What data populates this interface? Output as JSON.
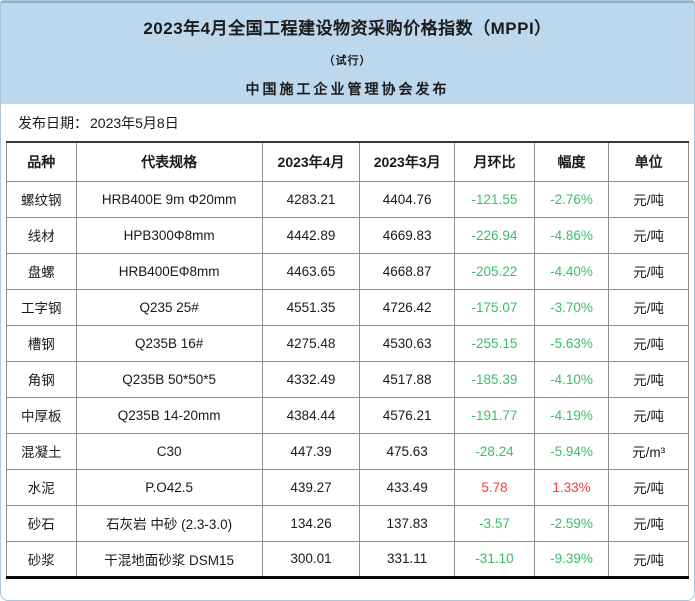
{
  "header": {
    "title": "2023年4月全国工程建设物资采购价格指数（MPPI）",
    "subtitle": "（试行）",
    "publisher": "中国施工企业管理协会发布"
  },
  "release": {
    "label": "发布日期：",
    "date": "2023年5月8日"
  },
  "table": {
    "columns": [
      "品种",
      "代表规格",
      "2023年4月",
      "2023年3月",
      "月环比",
      "幅度",
      "单位"
    ],
    "rows": [
      {
        "name": "螺纹钢",
        "spec": "HRB400E 9m Φ20mm",
        "apr": "4283.21",
        "mar": "4404.76",
        "mom": "-121.55",
        "pct": "-2.76%",
        "unit": "元/吨"
      },
      {
        "name": "线材",
        "spec": "HPB300Φ8mm",
        "apr": "4442.89",
        "mar": "4669.83",
        "mom": "-226.94",
        "pct": "-4.86%",
        "unit": "元/吨"
      },
      {
        "name": "盘螺",
        "spec": "HRB400EΦ8mm",
        "apr": "4463.65",
        "mar": "4668.87",
        "mom": "-205.22",
        "pct": "-4.40%",
        "unit": "元/吨"
      },
      {
        "name": "工字钢",
        "spec": "Q235 25#",
        "apr": "4551.35",
        "mar": "4726.42",
        "mom": "-175.07",
        "pct": "-3.70%",
        "unit": "元/吨"
      },
      {
        "name": "槽钢",
        "spec": "Q235B 16#",
        "apr": "4275.48",
        "mar": "4530.63",
        "mom": "-255.15",
        "pct": "-5.63%",
        "unit": "元/吨"
      },
      {
        "name": "角钢",
        "spec": "Q235B 50*50*5",
        "apr": "4332.49",
        "mar": "4517.88",
        "mom": "-185.39",
        "pct": "-4.10%",
        "unit": "元/吨"
      },
      {
        "name": "中厚板",
        "spec": "Q235B 14-20mm",
        "apr": "4384.44",
        "mar": "4576.21",
        "mom": "-191.77",
        "pct": "-4.19%",
        "unit": "元/吨"
      },
      {
        "name": "混凝土",
        "spec": "C30",
        "apr": "447.39",
        "mar": "475.63",
        "mom": "-28.24",
        "pct": "-5.94%",
        "unit": "元/m³"
      },
      {
        "name": "水泥",
        "spec": "P.O42.5",
        "apr": "439.27",
        "mar": "433.49",
        "mom": "5.78",
        "pct": "1.33%",
        "unit": "元/吨"
      },
      {
        "name": "砂石",
        "spec": "石灰岩 中砂 (2.3-3.0)",
        "apr": "134.26",
        "mar": "137.83",
        "mom": "-3.57",
        "pct": "-2.59%",
        "unit": "元/吨"
      },
      {
        "name": "砂浆",
        "spec": "干混地面砂浆 DSM15",
        "apr": "300.01",
        "mar": "331.11",
        "mom": "-31.10",
        "pct": "-9.39%",
        "unit": "元/吨"
      }
    ]
  },
  "colors": {
    "banner_bg": "#bdd7ed",
    "banner_top_line": "#8fb0cd",
    "down_green": "#3bbd6b",
    "up_red": "#fb3b3b",
    "border_gray": "#8f8f8f",
    "border_dark": "#3a3a3a",
    "border_black": "#0a0a0a",
    "text_color": "#1a1a1a",
    "frame": "#aec4d8"
  }
}
